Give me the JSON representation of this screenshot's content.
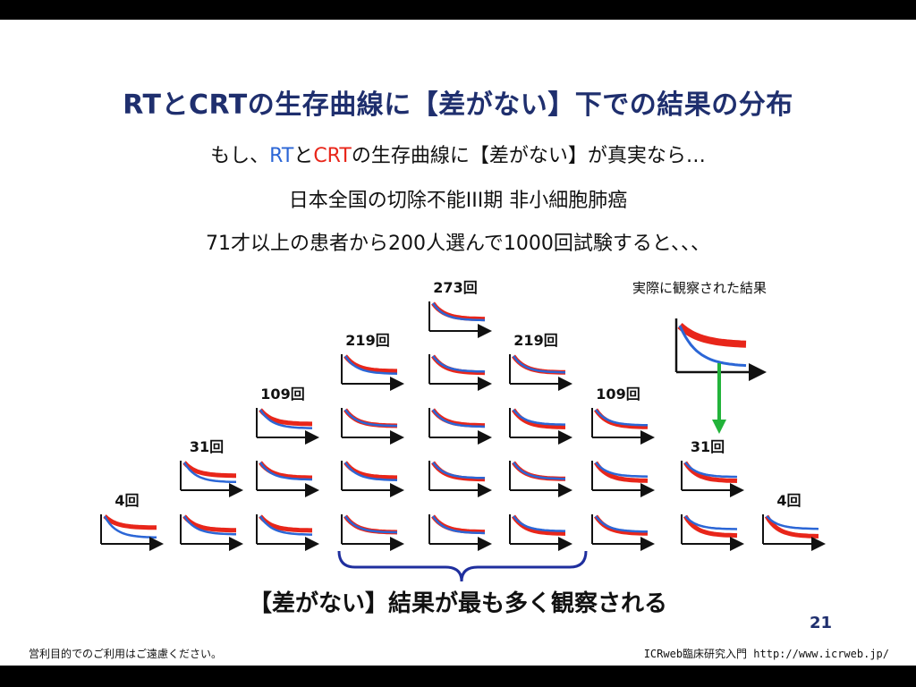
{
  "title": "RTとCRTの生存曲線に【差がない】下での結果の分布",
  "subtitle": {
    "prefix": "もし、",
    "rt": "RT",
    "mid": "と",
    "crt": "CRT",
    "suffix": "の生存曲線に【差がない】が真実なら…"
  },
  "line2": "日本全国の切除不能III期 非小細胞肺癌",
  "line3": "71才以上の患者から200人選んで1000回試験すると、、、",
  "observed_label": "実際に観察された結果",
  "conclusion": "【差がない】結果が最も多く観察される",
  "page_number": "21",
  "footer_left": "営利目的でのご利用はご遠慮ください。",
  "footer_right": "ICRweb臨床研究入門 http://www.icrweb.jp/",
  "colors": {
    "rt": "#2b66d6",
    "crt": "#e8261a",
    "title": "#1f2f6e",
    "arrow": "#22b33a"
  },
  "distribution": [
    {
      "label": "4回",
      "count": 4
    },
    {
      "label": "31回",
      "count": 31
    },
    {
      "label": "109回",
      "count": 109
    },
    {
      "label": "219回",
      "count": 219
    },
    {
      "label": "273回",
      "count": 273
    },
    {
      "label": "219回",
      "count": 219
    },
    {
      "label": "109回",
      "count": 109
    },
    {
      "label": "31回",
      "count": 31
    },
    {
      "label": "4回",
      "count": 4
    }
  ]
}
